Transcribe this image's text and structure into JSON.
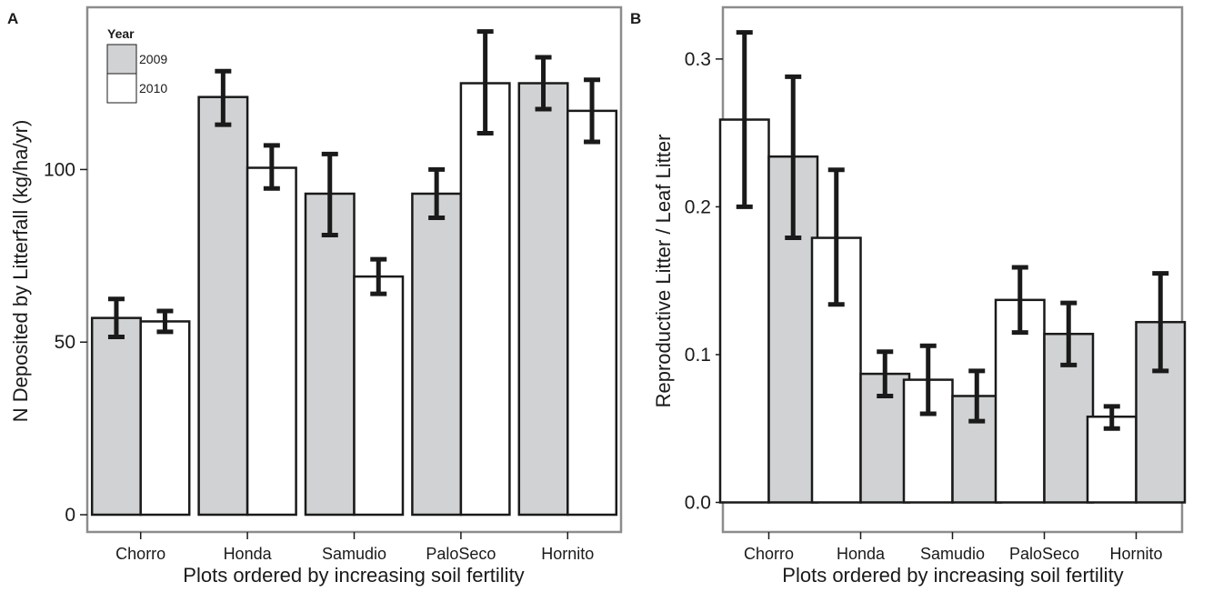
{
  "panels": [
    {
      "letter": "A",
      "xlabel": "Plots ordered by increasing soil fertility",
      "ylabel": "N Deposited by Litterfall (kg/ha/yr)"
    },
    {
      "letter": "B",
      "xlabel": "Plots ordered by increasing soil fertility",
      "ylabel": "Reproductive Litter / Leaf Litter"
    }
  ],
  "legend": {
    "title": "Year",
    "items": [
      {
        "label": "2009",
        "color": "#d0d2d3"
      },
      {
        "label": "2010",
        "color": "#ffffff"
      }
    ]
  },
  "colors": {
    "grey_fill": "#d0d2d3",
    "white_fill": "#ffffff",
    "stroke": "#1a1a1a",
    "frame": "#8c8c8c"
  },
  "chart_data": [
    {
      "type": "bar",
      "panel": "A",
      "categories": [
        "Chorro",
        "Honda",
        "Samudio",
        "PaloSeco",
        "Hornito"
      ],
      "ylim": [
        -5,
        147
      ],
      "yticks": [
        0,
        50,
        100
      ],
      "grid": false,
      "legend_position": "top-left",
      "series": [
        {
          "name": "2009",
          "color": "#d0d2d3",
          "values": [
            57,
            121,
            93,
            93,
            125
          ],
          "err_low": [
            51.5,
            113,
            81,
            86,
            117.5
          ],
          "err_high": [
            62.5,
            128.5,
            104.5,
            100,
            132.5
          ]
        },
        {
          "name": "2010",
          "color": "#ffffff",
          "values": [
            56,
            100.5,
            69,
            125,
            117
          ],
          "err_low": [
            53,
            94.5,
            64,
            110.5,
            108
          ],
          "err_high": [
            59,
            107,
            74,
            140,
            126
          ]
        }
      ]
    },
    {
      "type": "bar",
      "panel": "B",
      "categories": [
        "Chorro",
        "Honda",
        "Samudio",
        "PaloSeco",
        "Hornito"
      ],
      "ylim": [
        -0.02,
        0.335
      ],
      "yticks": [
        0.0,
        0.1,
        0.2,
        0.3
      ],
      "grid": false,
      "series": [
        {
          "color": "#ffffff",
          "values": [
            0.259,
            0.179,
            0.083,
            0.137,
            0.058
          ],
          "err_low": [
            0.2,
            0.134,
            0.06,
            0.115,
            0.05
          ],
          "err_high": [
            0.318,
            0.225,
            0.106,
            0.159,
            0.065
          ]
        },
        {
          "color": "#d0d2d3",
          "values": [
            0.234,
            0.087,
            0.072,
            0.114,
            0.122
          ],
          "err_low": [
            0.179,
            0.072,
            0.055,
            0.093,
            0.089
          ],
          "err_high": [
            0.288,
            0.102,
            0.089,
            0.135,
            0.155
          ]
        }
      ]
    }
  ]
}
